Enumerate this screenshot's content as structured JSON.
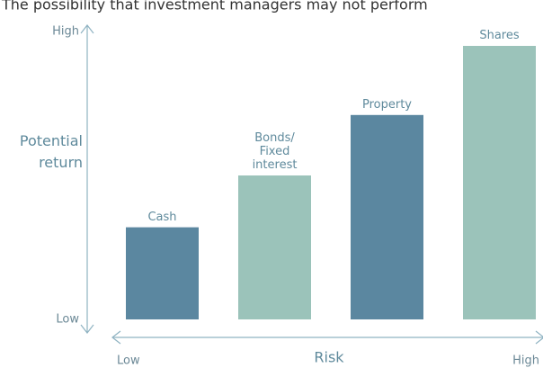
{
  "chart_data": {
    "type": "bar",
    "title": "The possibility that investment managers may not perform",
    "categories": [
      "Cash",
      "Bonds/ Fixed interest",
      "Property",
      "Shares"
    ],
    "values": [
      32,
      50,
      71,
      95
    ],
    "colors": [
      "#5b87a0",
      "#9bc3ba",
      "#5b87a0",
      "#9bc3ba"
    ],
    "ylim": [
      0,
      100
    ],
    "yticks": [
      {
        "value": 0,
        "label": "Low"
      },
      {
        "value": 100,
        "label": "High"
      }
    ],
    "ylabel": "Potential return",
    "xlabel": "Risk",
    "x_axis_ends": [
      "Low",
      "High"
    ]
  }
}
